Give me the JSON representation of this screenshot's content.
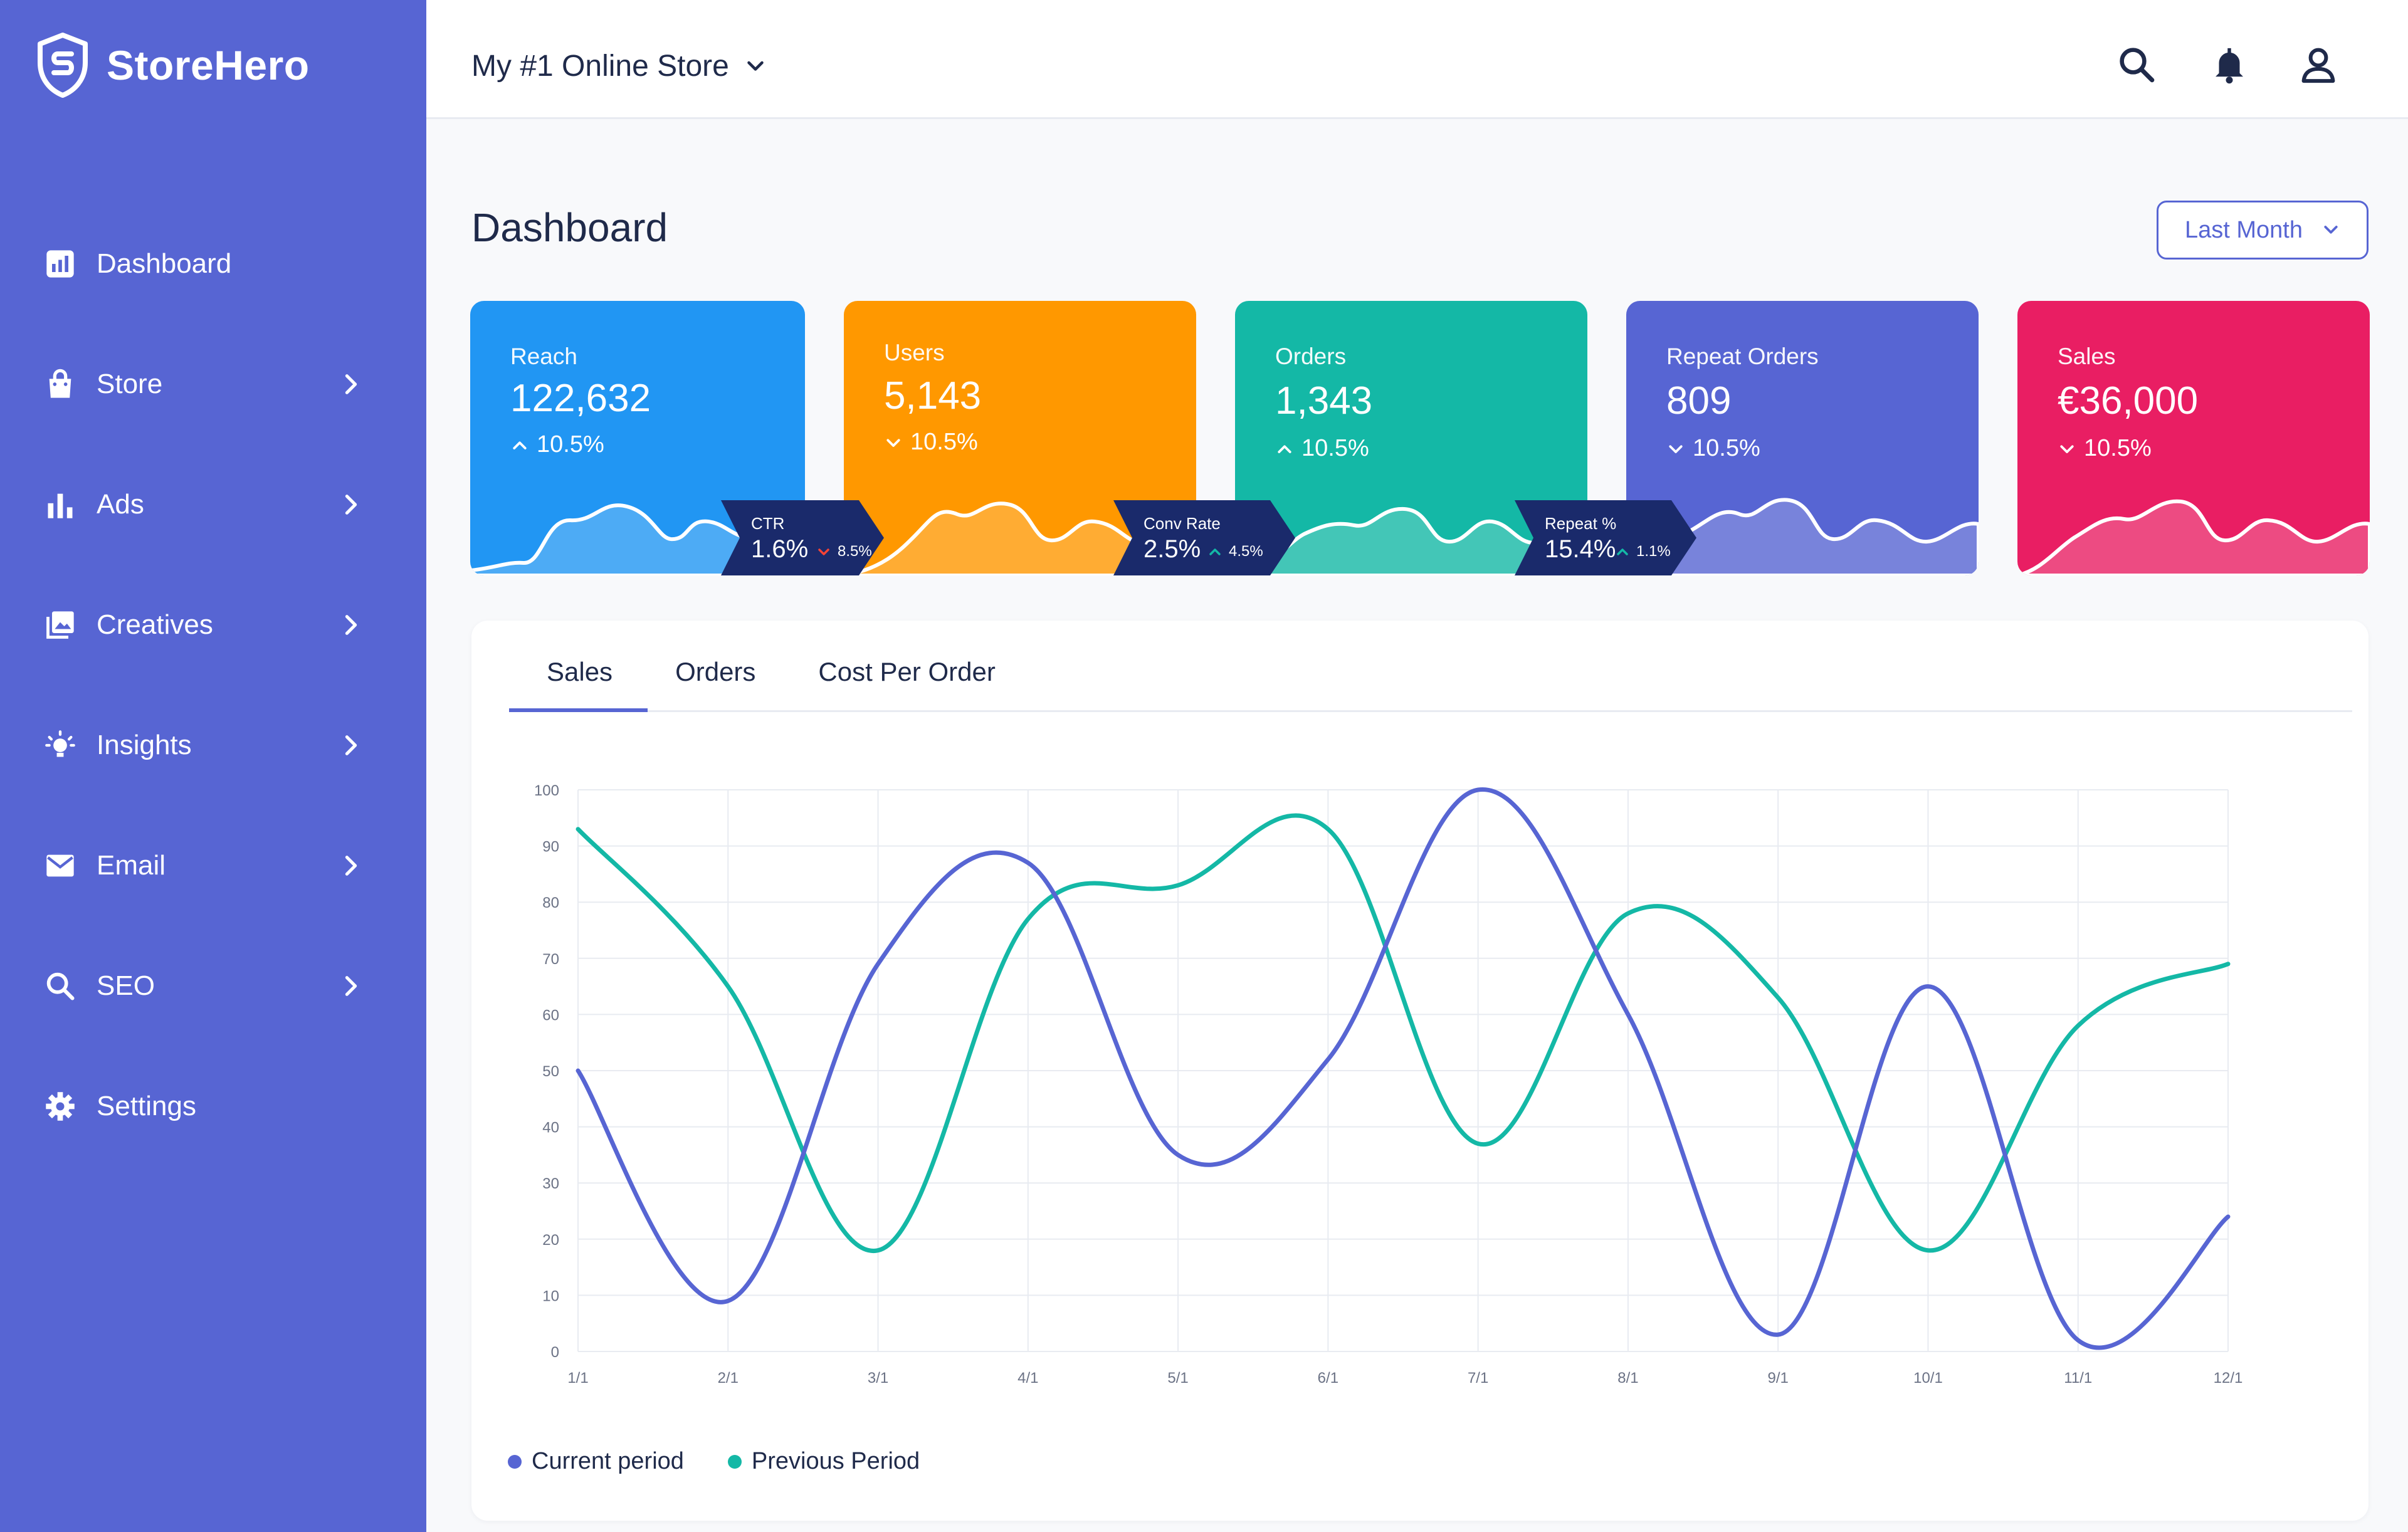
{
  "brand": {
    "name": "StoreHero"
  },
  "sidebar": {
    "items": [
      {
        "label": "Dashboard",
        "icon": "dashboard-icon"
      },
      {
        "label": "Store",
        "icon": "shopping-bag-icon"
      },
      {
        "label": "Ads",
        "icon": "bar-chart-icon"
      },
      {
        "label": "Creatives",
        "icon": "images-icon"
      },
      {
        "label": "Insights",
        "icon": "lightbulb-icon"
      },
      {
        "label": "Email",
        "icon": "mail-icon"
      },
      {
        "label": "SEO",
        "icon": "search-icon"
      },
      {
        "label": "Settings",
        "icon": "gear-icon"
      }
    ]
  },
  "header": {
    "store_name": "My #1 Online Store"
  },
  "page": {
    "title": "Dashboard",
    "range": "Last Month"
  },
  "cards": [
    {
      "title": "Reach",
      "value": "122,632",
      "change": "10.5%",
      "direction": "up",
      "color": "#2196f3"
    },
    {
      "title": "Users",
      "value": "5,143",
      "change": "10.5%",
      "direction": "down",
      "color": "#ff9800"
    },
    {
      "title": "Orders",
      "value": "1,343",
      "change": "10.5%",
      "direction": "up",
      "color": "#14b8a6"
    },
    {
      "title": "Repeat Orders",
      "value": "809",
      "change": "10.5%",
      "direction": "down",
      "color": "#5765d3"
    },
    {
      "title": "Sales",
      "value": "€36,000",
      "change": "10.5%",
      "direction": "down",
      "color": "#e91e63"
    }
  ],
  "badges": [
    {
      "title": "CTR",
      "value": "1.6%",
      "change": "8.5%",
      "direction": "down"
    },
    {
      "title": "Conv Rate",
      "value": "2.5%",
      "change": "4.5%",
      "direction": "up"
    },
    {
      "title": "Repeat %",
      "value": "15.4%",
      "change": "1.1%",
      "direction": "up"
    }
  ],
  "tabs": [
    "Sales",
    "Orders",
    "Cost Per Order"
  ],
  "chart_data": {
    "type": "line",
    "x": [
      "1/1",
      "2/1",
      "3/1",
      "4/1",
      "5/1",
      "6/1",
      "7/1",
      "8/1",
      "9/1",
      "10/1",
      "11/1",
      "12/1"
    ],
    "ylim": [
      0,
      100
    ],
    "yticks": [
      0,
      10,
      20,
      30,
      40,
      50,
      60,
      70,
      80,
      90,
      100
    ],
    "grid": true,
    "legend_position": "bottom-left",
    "series": [
      {
        "name": "Current period",
        "color": "#5765d3",
        "values": [
          50,
          9,
          69,
          87,
          35,
          52,
          100,
          60,
          3,
          65,
          2,
          24
        ]
      },
      {
        "name": "Previous Period",
        "color": "#14b8a6",
        "values": [
          93,
          65,
          18,
          77,
          83,
          93,
          37,
          78,
          63,
          18,
          58,
          69
        ]
      }
    ]
  }
}
